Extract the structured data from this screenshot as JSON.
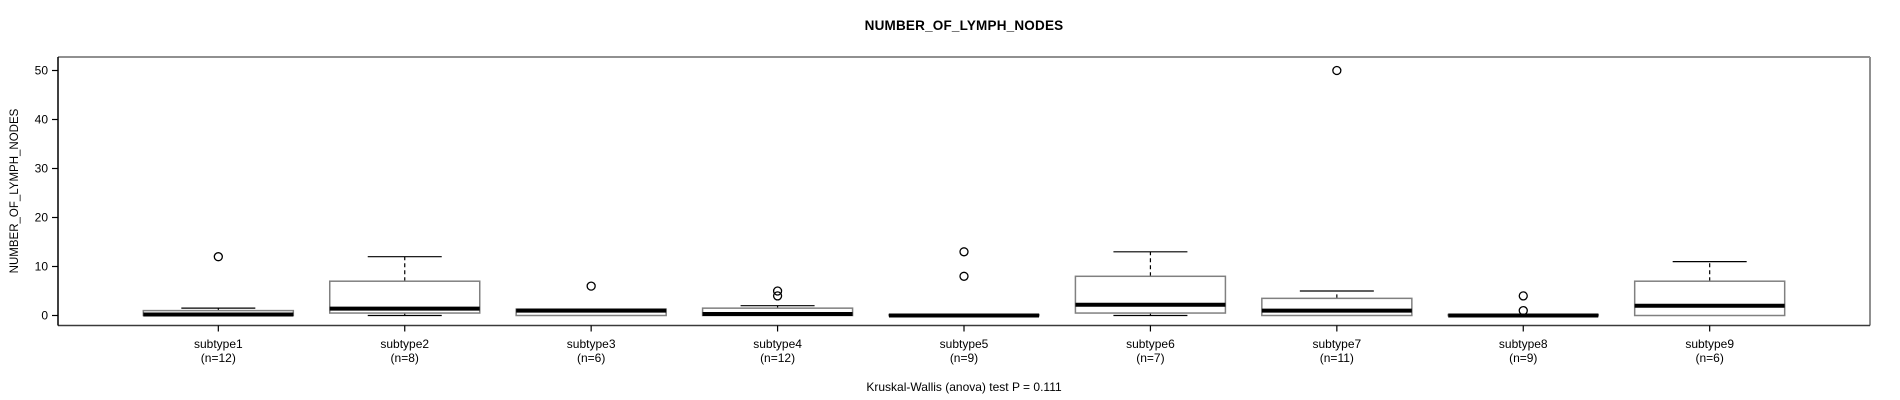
{
  "chart_data": {
    "type": "boxplot",
    "title": "NUMBER_OF_LYMPH_NODES",
    "ylabel": "NUMBER_OF_LYMPH_NODES",
    "caption": "Kruskal-Wallis (anova) test P = 0.111",
    "yticks": [
      0,
      10,
      20,
      30,
      40,
      50
    ],
    "ylim": [
      -2,
      52.7
    ],
    "grid": false,
    "groups": [
      {
        "label": "subtype1",
        "n_label": "(n=12)",
        "n": 12,
        "whisker_low": 0,
        "q1": 0,
        "median": 0.2,
        "q3": 1,
        "whisker_high": 1.5,
        "outliers": [
          12
        ]
      },
      {
        "label": "subtype2",
        "n_label": "(n=8)",
        "n": 8,
        "whisker_low": 0,
        "q1": 0.5,
        "median": 1.4,
        "q3": 7,
        "whisker_high": 12,
        "outliers": []
      },
      {
        "label": "subtype3",
        "n_label": "(n=6)",
        "n": 6,
        "whisker_low": 0,
        "q1": 0,
        "median": 1,
        "q3": 1.3,
        "whisker_high": 1.3,
        "outliers": [
          6
        ]
      },
      {
        "label": "subtype4",
        "n_label": "(n=12)",
        "n": 12,
        "whisker_low": 0,
        "q1": 0,
        "median": 0.3,
        "q3": 1.5,
        "whisker_high": 2,
        "outliers": [
          4,
          5
        ]
      },
      {
        "label": "subtype5",
        "n_label": "(n=9)",
        "n": 9,
        "whisker_low": 0,
        "q1": 0,
        "median": 0,
        "q3": 0.2,
        "whisker_high": 0.2,
        "outliers": [
          8,
          13
        ]
      },
      {
        "label": "subtype6",
        "n_label": "(n=7)",
        "n": 7,
        "whisker_low": 0,
        "q1": 0.5,
        "median": 2.2,
        "q3": 8,
        "whisker_high": 13,
        "outliers": []
      },
      {
        "label": "subtype7",
        "n_label": "(n=11)",
        "n": 11,
        "whisker_low": 0,
        "q1": 0,
        "median": 1,
        "q3": 3.5,
        "whisker_high": 5,
        "outliers": [
          50
        ]
      },
      {
        "label": "subtype8",
        "n_label": "(n=9)",
        "n": 9,
        "whisker_low": 0,
        "q1": 0,
        "median": 0,
        "q3": 0.2,
        "whisker_high": 0.2,
        "outliers": [
          1,
          4
        ]
      },
      {
        "label": "subtype9",
        "n_label": "(n=6)",
        "n": 6,
        "whisker_low": 0,
        "q1": 0,
        "median": 2,
        "q3": 7,
        "whisker_high": 11,
        "outliers": []
      }
    ],
    "colors": {
      "background": "#ffffff",
      "box_fill": "#ffffff",
      "box_border": "#808080",
      "median": "#000000",
      "whisker": "#000000",
      "outlier": "#000000",
      "frame_top": "#909090",
      "frame_right": "#909090",
      "frame_bottom": "#3a3a3a",
      "frame_left": "#000000",
      "text": "#000000"
    }
  }
}
